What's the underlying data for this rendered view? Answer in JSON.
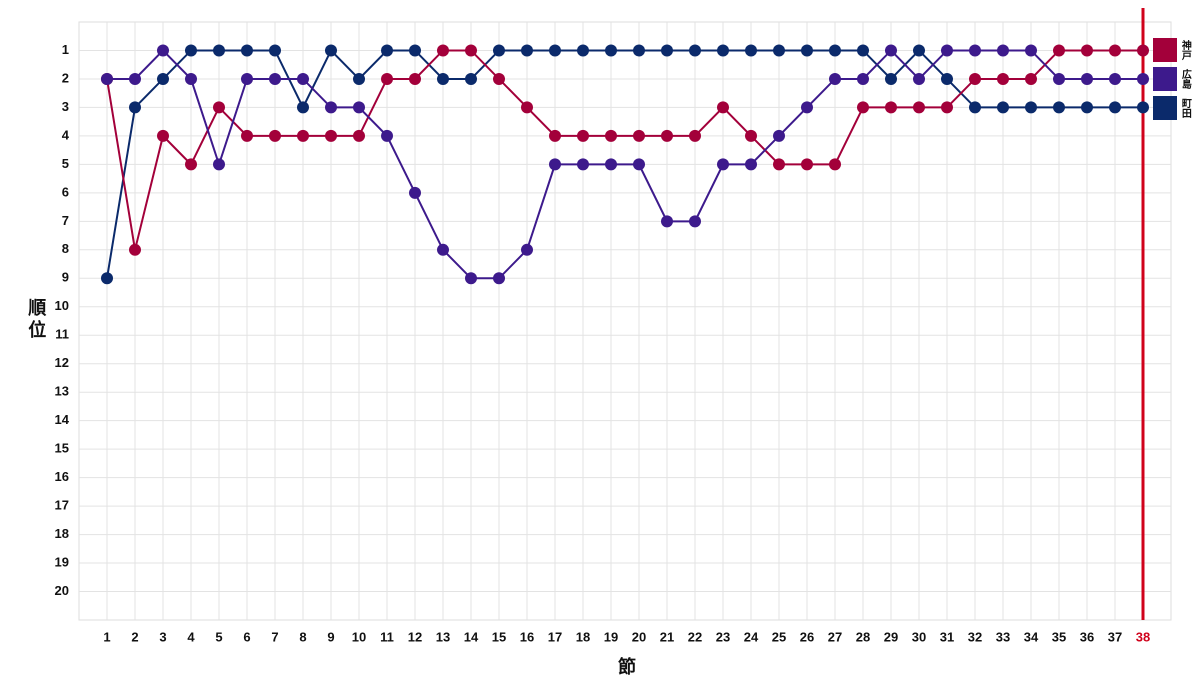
{
  "chart_data": {
    "type": "line",
    "x_label": "節",
    "y_label": "順位",
    "x": [
      1,
      2,
      3,
      4,
      5,
      6,
      7,
      8,
      9,
      10,
      11,
      12,
      13,
      14,
      15,
      16,
      17,
      18,
      19,
      20,
      21,
      22,
      23,
      24,
      25,
      26,
      27,
      28,
      29,
      30,
      31,
      32,
      33,
      34,
      35,
      36,
      37,
      38
    ],
    "series": [
      {
        "name": "町田",
        "color": "#0b2a6b",
        "values": [
          9,
          3,
          2,
          1,
          1,
          1,
          1,
          3,
          1,
          2,
          1,
          1,
          2,
          2,
          1,
          1,
          1,
          1,
          1,
          1,
          1,
          1,
          1,
          1,
          1,
          1,
          1,
          1,
          2,
          1,
          2,
          3,
          3,
          3,
          3,
          3,
          3,
          3
        ]
      },
      {
        "name": "神戸",
        "color": "#a3003a",
        "values": [
          2,
          8,
          4,
          5,
          3,
          4,
          4,
          4,
          4,
          4,
          2,
          2,
          1,
          1,
          2,
          3,
          4,
          4,
          4,
          4,
          4,
          4,
          3,
          4,
          5,
          5,
          5,
          3,
          3,
          3,
          3,
          2,
          2,
          2,
          1,
          1,
          1,
          1
        ]
      },
      {
        "name": "広島",
        "color": "#3d1a8c",
        "values": [
          2,
          2,
          1,
          2,
          5,
          2,
          2,
          2,
          3,
          3,
          4,
          6,
          8,
          9,
          9,
          8,
          5,
          5,
          5,
          5,
          7,
          7,
          5,
          5,
          4,
          3,
          2,
          2,
          1,
          2,
          1,
          1,
          1,
          1,
          2,
          2,
          2,
          2
        ]
      }
    ],
    "legend_order": [
      1,
      2,
      0
    ],
    "xlim": [
      0,
      39
    ],
    "ylim": [
      21,
      0
    ],
    "xticks": [
      1,
      2,
      3,
      4,
      5,
      6,
      7,
      8,
      9,
      10,
      11,
      12,
      13,
      14,
      15,
      16,
      17,
      18,
      19,
      20,
      21,
      22,
      23,
      24,
      25,
      26,
      27,
      28,
      29,
      30,
      31,
      32,
      33,
      34,
      35,
      36,
      37,
      38
    ],
    "yticks": [
      1,
      2,
      3,
      4,
      5,
      6,
      7,
      8,
      9,
      10,
      11,
      12,
      13,
      14,
      15,
      16,
      17,
      18,
      19,
      20
    ],
    "grid": true,
    "marker_line": {
      "x": 38,
      "color": "#d0021b"
    }
  }
}
